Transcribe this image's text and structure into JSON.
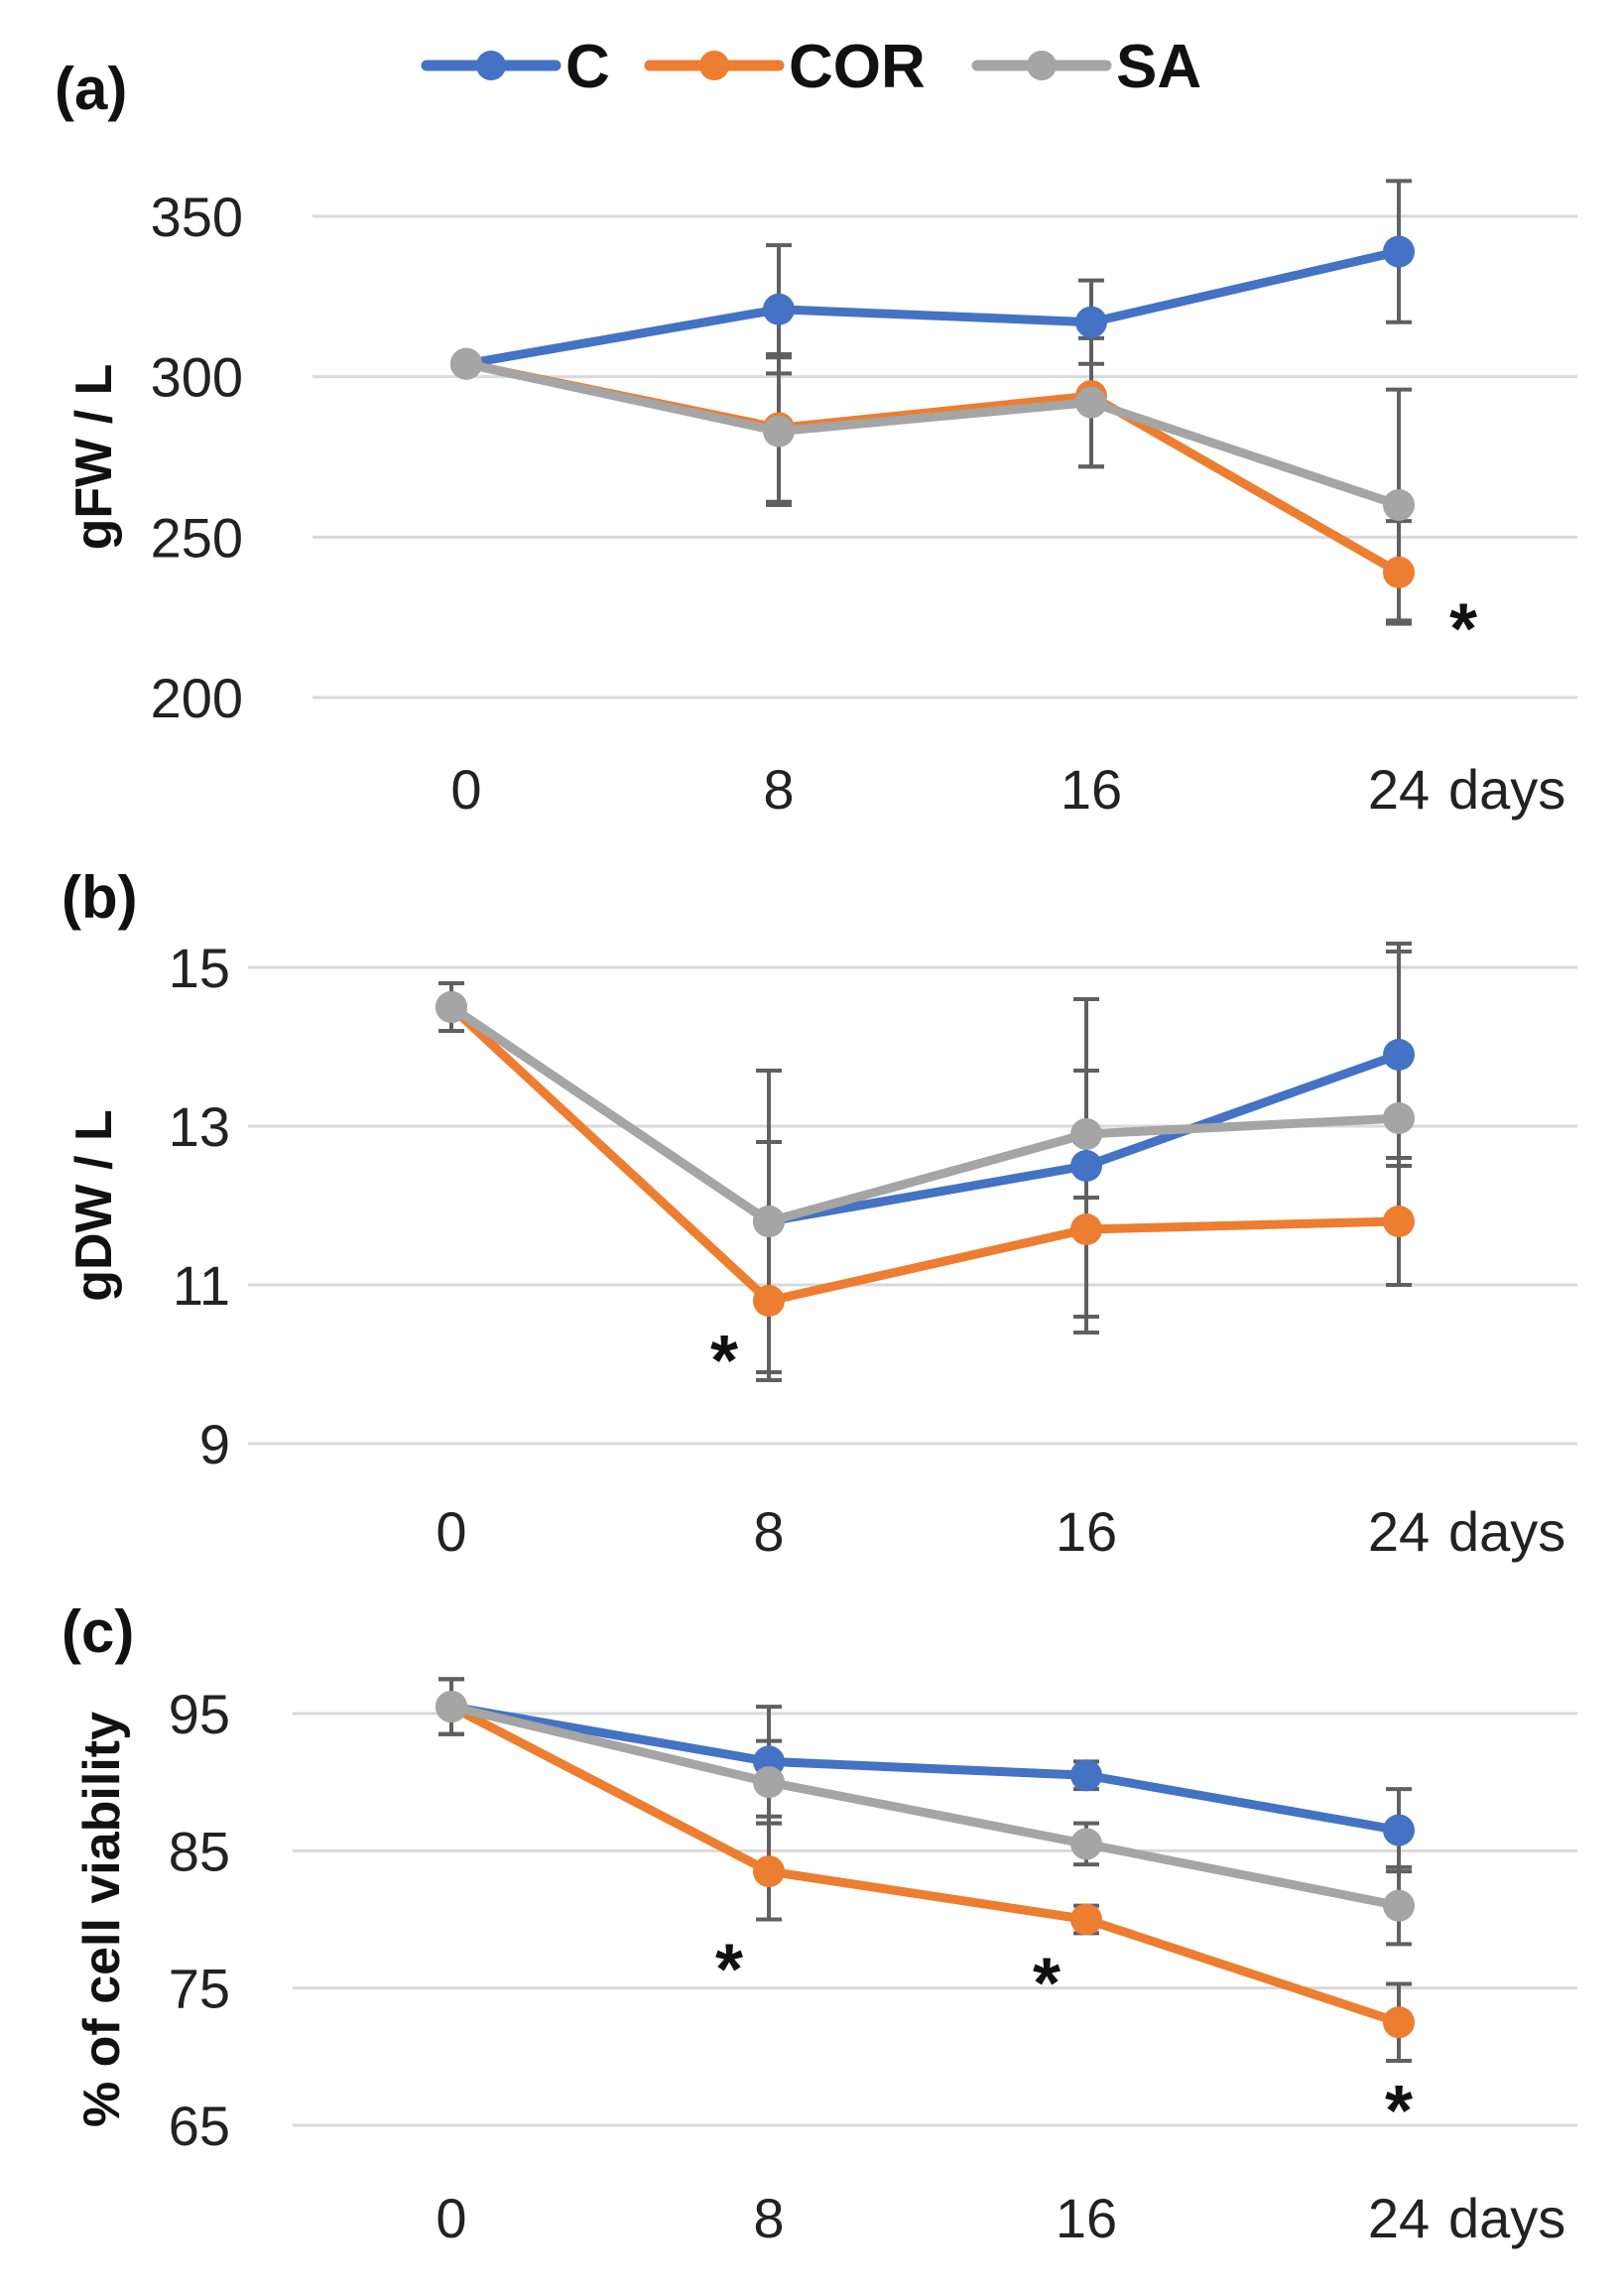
{
  "legend": [
    {
      "name": "C",
      "color": "#4472C4"
    },
    {
      "name": "COR",
      "color": "#ED7D31"
    },
    {
      "name": "SA",
      "color": "#A5A5A5"
    }
  ],
  "x_unit_label": "days",
  "chart_data": [
    {
      "panel": "(a)",
      "type": "line",
      "title": "",
      "xlabel": "days",
      "ylabel": "gFW / L",
      "categories": [
        "0",
        "8",
        "16",
        "24"
      ],
      "ylim": [
        200,
        350
      ],
      "yticks": [
        200,
        250,
        300,
        350
      ],
      "grid": true,
      "series": [
        {
          "name": "C",
          "values": [
            304,
            321,
            317,
            339
          ],
          "errors": [
            0,
            20,
            13,
            22
          ]
        },
        {
          "name": "COR",
          "values": [
            304,
            284,
            294,
            239
          ],
          "errors": [
            0,
            23,
            22,
            16
          ]
        },
        {
          "name": "SA",
          "values": [
            304,
            283,
            292,
            260
          ],
          "errors": [
            0,
            23,
            20,
            36
          ]
        }
      ],
      "annotations": [
        {
          "text": "*",
          "series": "COR",
          "x": "24"
        }
      ]
    },
    {
      "panel": "(b)",
      "type": "line",
      "title": "",
      "xlabel": "days",
      "ylabel": "gDW / L",
      "categories": [
        "0",
        "8",
        "16",
        "24"
      ],
      "ylim": [
        9,
        15
      ],
      "yticks": [
        9,
        11,
        13,
        15
      ],
      "grid": true,
      "series": [
        {
          "name": "C",
          "values": [
            14.5,
            11.8,
            12.5,
            13.9
          ],
          "errors": [
            0.3,
            1.9,
            2.1,
            1.4
          ]
        },
        {
          "name": "COR",
          "values": [
            14.5,
            10.8,
            11.7,
            11.8
          ],
          "errors": [
            0.3,
            1.0,
            1.1,
            0.8
          ]
        },
        {
          "name": "SA",
          "values": [
            14.5,
            11.8,
            12.9,
            13.1
          ],
          "errors": [
            0.3,
            1.0,
            0.8,
            2.1
          ]
        }
      ],
      "annotations": [
        {
          "text": "*",
          "series": "COR",
          "x": "8"
        }
      ]
    },
    {
      "panel": "(c)",
      "type": "line",
      "title": "",
      "xlabel": "days",
      "ylabel": "% of cell viability",
      "categories": [
        "0",
        "8",
        "16",
        "24"
      ],
      "ylim": [
        65,
        95
      ],
      "yticks": [
        65,
        75,
        85,
        95
      ],
      "grid": true,
      "series": [
        {
          "name": "C",
          "values": [
            95.5,
            91.5,
            90.5,
            86.5
          ],
          "errors": [
            2.0,
            4.0,
            1.0,
            3.0
          ]
        },
        {
          "name": "COR",
          "values": [
            95.5,
            83.5,
            80.0,
            72.5
          ],
          "errors": [
            2.0,
            3.5,
            1.0,
            2.8
          ]
        },
        {
          "name": "SA",
          "values": [
            95.5,
            90.0,
            85.5,
            81.0
          ],
          "errors": [
            2.0,
            3.0,
            1.5,
            2.8
          ]
        }
      ],
      "annotations": [
        {
          "text": "*",
          "series": "COR",
          "x": "8"
        },
        {
          "text": "*",
          "series": "COR",
          "x": "16"
        },
        {
          "text": "*",
          "series": "COR",
          "x": "24"
        }
      ]
    }
  ]
}
